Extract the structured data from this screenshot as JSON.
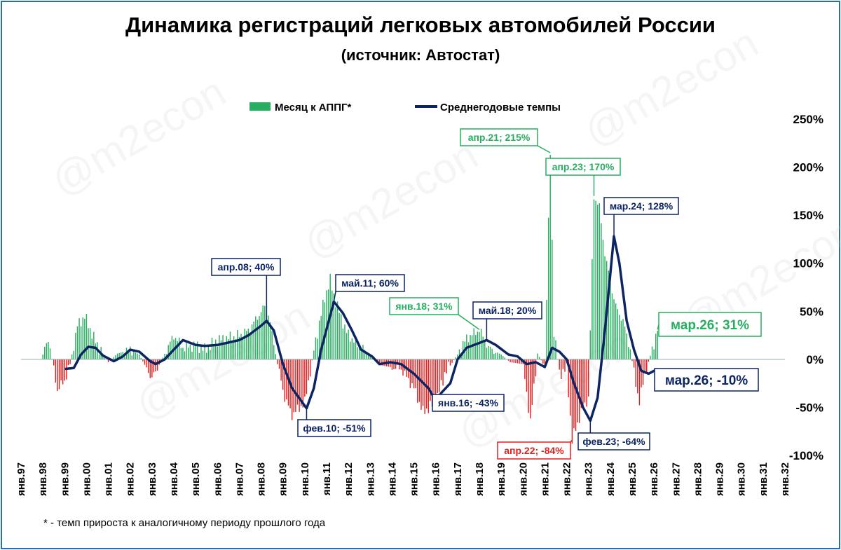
{
  "watermark": "@m2econ",
  "footnote": "* - темп прироста к аналогичному периоду прошлого года",
  "chart_data": {
    "type": "bar+line",
    "title": "Динамика регистраций легковых автомобилей России",
    "subtitle": "(источник: Автостат)",
    "legend": {
      "placement": "top",
      "items": [
        "Месяц к АППГ*",
        "Среднегодовые темпы"
      ]
    },
    "ylim": [
      -100,
      250
    ],
    "yticks": [
      -100,
      -50,
      0,
      50,
      100,
      150,
      200,
      250
    ],
    "ytick_labels": [
      "-100%",
      "-50%",
      "0%",
      "50%",
      "100%",
      "150%",
      "200%",
      "250%"
    ],
    "xlim": [
      1997,
      2032
    ],
    "xticks": [
      "янв.97",
      "янв.98",
      "янв.99",
      "янв.00",
      "янв.01",
      "янв.02",
      "янв.03",
      "янв.04",
      "янв.05",
      "янв.06",
      "янв.07",
      "янв.08",
      "янв.09",
      "янв.10",
      "янв.11",
      "янв.12",
      "янв.13",
      "янв.14",
      "янв.15",
      "янв.16",
      "янв.17",
      "янв.18",
      "янв.19",
      "янв.20",
      "янв.21",
      "янв.22",
      "янв.23",
      "янв.24",
      "янв.25",
      "янв.26",
      "янв.27",
      "янв.28",
      "янв.29",
      "янв.30",
      "янв.31",
      "янв.32"
    ],
    "colors": {
      "positive_bar": "#27ae60",
      "negative_bar": "#e02020",
      "line": "#0d2463",
      "label_green": "#27ae60",
      "label_red": "#e02020",
      "label_navy": "#0d2463"
    },
    "bar_series": {
      "name": "Месяц к АППГ*",
      "keypoints": [
        [
          "1998-01",
          5
        ],
        [
          "1998-04",
          22
        ],
        [
          "1998-07",
          -10
        ],
        [
          "1998-09",
          -32
        ],
        [
          "1999-01",
          -22
        ],
        [
          "1999-04",
          -5
        ],
        [
          "1999-08",
          35
        ],
        [
          "1999-12",
          45
        ],
        [
          "2000-06",
          18
        ],
        [
          "2001-01",
          -3
        ],
        [
          "2001-06",
          6
        ],
        [
          "2002-01",
          10
        ],
        [
          "2002-06",
          5
        ],
        [
          "2003-01",
          -20
        ],
        [
          "2003-06",
          -2
        ],
        [
          "2004-01",
          25
        ],
        [
          "2004-06",
          12
        ],
        [
          "2005-01",
          15
        ],
        [
          "2005-06",
          10
        ],
        [
          "2006-01",
          20
        ],
        [
          "2006-06",
          22
        ],
        [
          "2007-01",
          25
        ],
        [
          "2007-06",
          30
        ],
        [
          "2008-04",
          58
        ],
        [
          "2008-10",
          -5
        ],
        [
          "2009-02",
          -40
        ],
        [
          "2009-06",
          -58
        ],
        [
          "2010-01",
          -45
        ],
        [
          "2010-06",
          10
        ],
        [
          "2010-12",
          65
        ],
        [
          "2011-03",
          82
        ],
        [
          "2011-06",
          60
        ],
        [
          "2011-12",
          28
        ],
        [
          "2012-06",
          15
        ],
        [
          "2013-01",
          5
        ],
        [
          "2013-06",
          -6
        ],
        [
          "2014-06",
          -10
        ],
        [
          "2015-01",
          -30
        ],
        [
          "2015-06",
          -55
        ],
        [
          "2016-01",
          -45
        ],
        [
          "2016-06",
          -15
        ],
        [
          "2017-01",
          5
        ],
        [
          "2017-06",
          22
        ],
        [
          "2018-01",
          31
        ],
        [
          "2018-06",
          12
        ],
        [
          "2019-01",
          5
        ],
        [
          "2019-06",
          -3
        ],
        [
          "2020-01",
          -5
        ],
        [
          "2020-05",
          -65
        ],
        [
          "2020-09",
          6
        ],
        [
          "2021-01",
          -8
        ],
        [
          "2021-04",
          215
        ],
        [
          "2021-06",
          30
        ],
        [
          "2021-09",
          -15
        ],
        [
          "2022-01",
          -10
        ],
        [
          "2022-04",
          -84
        ],
        [
          "2022-09",
          -55
        ],
        [
          "2023-01",
          -40
        ],
        [
          "2023-04",
          170
        ],
        [
          "2023-07",
          158
        ],
        [
          "2023-10",
          110
        ],
        [
          "2024-01",
          80
        ],
        [
          "2024-04",
          55
        ],
        [
          "2024-08",
          40
        ],
        [
          "2024-12",
          10
        ],
        [
          "2025-03",
          -25
        ],
        [
          "2025-05",
          -45
        ],
        [
          "2025-08",
          -15
        ],
        [
          "2025-12",
          10
        ],
        [
          "2026-03",
          31
        ]
      ]
    },
    "line_series": {
      "name": "Среднегодовые темпы",
      "points": [
        [
          "1999-01",
          -10
        ],
        [
          "1999-06",
          -9
        ],
        [
          "1999-10",
          5
        ],
        [
          "2000-02",
          13
        ],
        [
          "2000-06",
          12
        ],
        [
          "2000-10",
          4
        ],
        [
          "2001-04",
          -2
        ],
        [
          "2001-09",
          3
        ],
        [
          "2002-01",
          10
        ],
        [
          "2002-06",
          8
        ],
        [
          "2002-12",
          -2
        ],
        [
          "2003-03",
          -5
        ],
        [
          "2003-08",
          0
        ],
        [
          "2004-01",
          10
        ],
        [
          "2004-06",
          20
        ],
        [
          "2005-01",
          15
        ],
        [
          "2005-06",
          14
        ],
        [
          "2006-01",
          15
        ],
        [
          "2006-06",
          17
        ],
        [
          "2007-01",
          20
        ],
        [
          "2007-06",
          25
        ],
        [
          "2008-01",
          35
        ],
        [
          "2008-04",
          40
        ],
        [
          "2008-08",
          30
        ],
        [
          "2009-01",
          -5
        ],
        [
          "2009-06",
          -30
        ],
        [
          "2010-02",
          -51
        ],
        [
          "2010-06",
          -30
        ],
        [
          "2010-10",
          10
        ],
        [
          "2011-05",
          60
        ],
        [
          "2011-10",
          48
        ],
        [
          "2012-03",
          30
        ],
        [
          "2012-08",
          10
        ],
        [
          "2013-02",
          3
        ],
        [
          "2013-06",
          -5
        ],
        [
          "2013-12",
          -3
        ],
        [
          "2014-06",
          -5
        ],
        [
          "2015-01",
          -15
        ],
        [
          "2015-09",
          -30
        ],
        [
          "2016-01",
          -43
        ],
        [
          "2016-04",
          -35
        ],
        [
          "2016-09",
          -25
        ],
        [
          "2017-01",
          0
        ],
        [
          "2017-06",
          12
        ],
        [
          "2018-01",
          17
        ],
        [
          "2018-05",
          20
        ],
        [
          "2018-10",
          15
        ],
        [
          "2019-05",
          5
        ],
        [
          "2019-10",
          3
        ],
        [
          "2020-03",
          -5
        ],
        [
          "2020-08",
          -3
        ],
        [
          "2021-01",
          -8
        ],
        [
          "2021-05",
          12
        ],
        [
          "2021-09",
          8
        ],
        [
          "2022-01",
          0
        ],
        [
          "2022-05",
          -25
        ],
        [
          "2022-10",
          -50
        ],
        [
          "2023-02",
          -64
        ],
        [
          "2023-06",
          -40
        ],
        [
          "2023-10",
          30
        ],
        [
          "2024-03",
          128
        ],
        [
          "2024-06",
          100
        ],
        [
          "2024-10",
          40
        ],
        [
          "2025-02",
          10
        ],
        [
          "2025-06",
          -12
        ],
        [
          "2025-10",
          -15
        ],
        [
          "2026-01",
          -12
        ],
        [
          "2026-03",
          -10
        ]
      ]
    },
    "annotations": [
      {
        "text": "апр.21; 215%",
        "date": "2021-04",
        "value": 215,
        "color": "green"
      },
      {
        "text": "апр.23; 170%",
        "date": "2023-04",
        "value": 170,
        "color": "green"
      },
      {
        "text": "янв.18; 31%",
        "date": "2018-01",
        "value": 31,
        "color": "green"
      },
      {
        "text": "мар.26; 31%",
        "date": "2026-03",
        "value": 31,
        "color": "green"
      },
      {
        "text": "апр.22; -84%",
        "date": "2022-04",
        "value": -84,
        "color": "red"
      },
      {
        "text": "апр.08; 40%",
        "date": "2008-04",
        "value": 40,
        "color": "navy"
      },
      {
        "text": "май.11; 60%",
        "date": "2011-05",
        "value": 60,
        "color": "navy"
      },
      {
        "text": "май.18; 20%",
        "date": "2018-05",
        "value": 20,
        "color": "navy"
      },
      {
        "text": "мар.24; 128%",
        "date": "2024-03",
        "value": 128,
        "color": "navy"
      },
      {
        "text": "фев.10; -51%",
        "date": "2010-02",
        "value": -51,
        "color": "navy"
      },
      {
        "text": "янв.16; -43%",
        "date": "2016-01",
        "value": -43,
        "color": "navy"
      },
      {
        "text": "фев.23; -64%",
        "date": "2023-02",
        "value": -64,
        "color": "navy"
      },
      {
        "text": "мар.26; -10%",
        "date": "2026-03",
        "value": -10,
        "color": "navy"
      }
    ]
  }
}
